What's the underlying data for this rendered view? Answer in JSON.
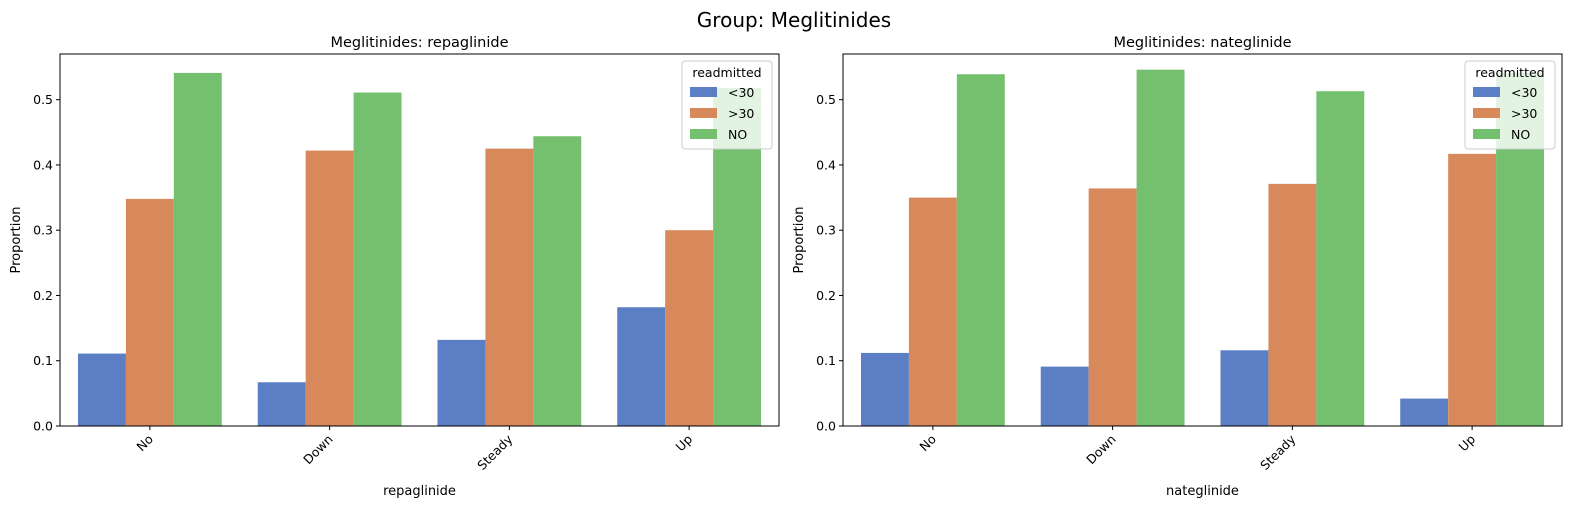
{
  "figure": {
    "suptitle": "Group: Meglitinides"
  },
  "chart_data": [
    {
      "type": "bar",
      "title": "Meglitinides: repaglinide",
      "xlabel": "repaglinide",
      "ylabel": "Proportion",
      "categories": [
        "No",
        "Down",
        "Steady",
        "Up"
      ],
      "ylim": [
        0,
        0.57
      ],
      "yticks": [
        "0.0",
        "0.1",
        "0.2",
        "0.3",
        "0.4",
        "0.5"
      ],
      "legend": {
        "title": "readmitted",
        "placement": "top-right"
      },
      "series": [
        {
          "name": "<30",
          "color": "#5b7ec4",
          "values": [
            0.111,
            0.067,
            0.132,
            0.182
          ]
        },
        {
          "name": ">30",
          "color": "#d8895c",
          "values": [
            0.348,
            0.422,
            0.425,
            0.3
          ]
        },
        {
          "name": "NO",
          "color": "#74c06f",
          "values": [
            0.541,
            0.511,
            0.444,
            0.518
          ]
        }
      ]
    },
    {
      "type": "bar",
      "title": "Meglitinides: nateglinide",
      "xlabel": "nateglinide",
      "ylabel": "Proportion",
      "categories": [
        "No",
        "Down",
        "Steady",
        "Up"
      ],
      "ylim": [
        0,
        0.57
      ],
      "yticks": [
        "0.0",
        "0.1",
        "0.2",
        "0.3",
        "0.4",
        "0.5"
      ],
      "legend": {
        "title": "readmitted",
        "placement": "top-right"
      },
      "series": [
        {
          "name": "<30",
          "color": "#5b7ec4",
          "values": [
            0.112,
            0.091,
            0.116,
            0.042
          ]
        },
        {
          "name": ">30",
          "color": "#d8895c",
          "values": [
            0.35,
            0.364,
            0.371,
            0.417
          ]
        },
        {
          "name": "NO",
          "color": "#74c06f",
          "values": [
            0.539,
            0.546,
            0.513,
            0.541
          ]
        }
      ]
    }
  ]
}
